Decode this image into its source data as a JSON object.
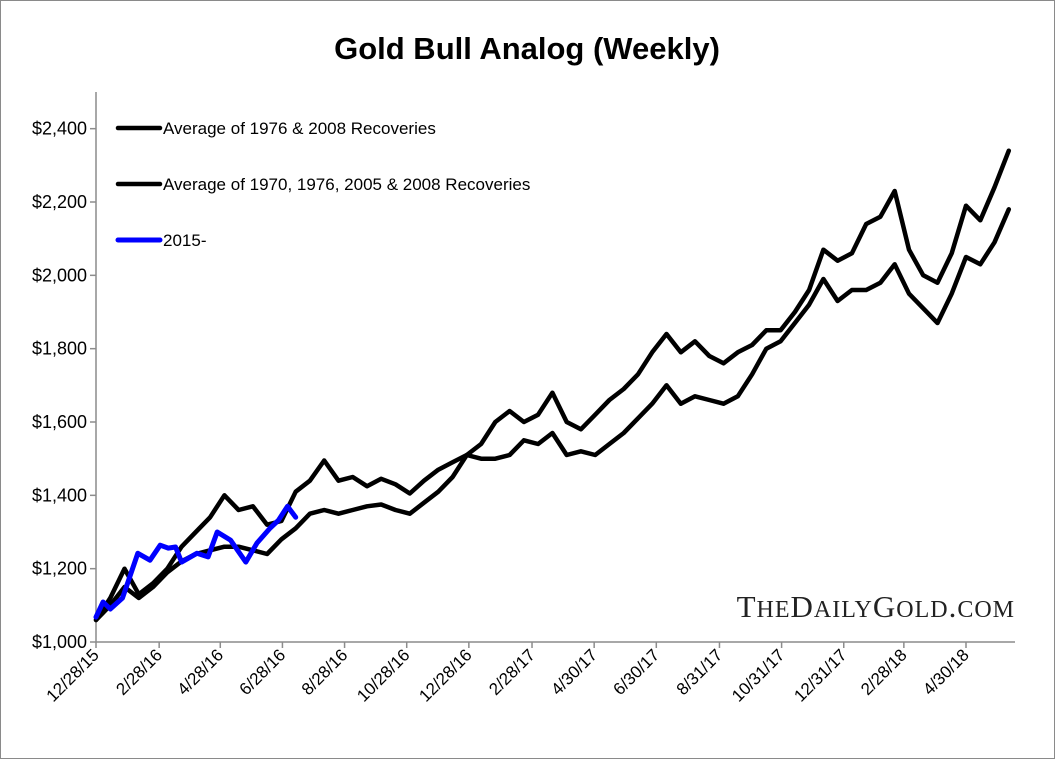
{
  "chart_data": {
    "type": "line",
    "title": "Gold Bull Analog (Weekly)",
    "xlabel": "",
    "ylabel": "",
    "ylim": [
      1000,
      2500
    ],
    "yticks": [
      1000,
      1200,
      1400,
      1600,
      1800,
      2000,
      2200,
      2400
    ],
    "ytick_labels": [
      "$1,000",
      "$1,200",
      "$1,400",
      "$1,600",
      "$1,800",
      "$2,000",
      "$2,200",
      "$2,400"
    ],
    "xtick_labels": [
      "12/28/15",
      "2/28/16",
      "4/28/16",
      "6/28/16",
      "8/28/16",
      "10/28/16",
      "12/28/16",
      "2/28/17",
      "4/30/17",
      "6/30/17",
      "8/31/17",
      "10/31/17",
      "12/31/17",
      "2/28/18",
      "4/30/18"
    ],
    "grid": false,
    "legend_placement": "top-left",
    "watermark": "TheDailyGold.com",
    "series": [
      {
        "name": "Average of 1976 & 2008 Recoveries",
        "color": "#000000",
        "x": [
          "2015-12-28",
          "2016-01-11",
          "2016-01-25",
          "2016-02-08",
          "2016-02-22",
          "2016-03-07",
          "2016-03-21",
          "2016-04-04",
          "2016-04-18",
          "2016-05-02",
          "2016-05-16",
          "2016-05-30",
          "2016-06-13",
          "2016-06-27",
          "2016-07-11",
          "2016-07-25",
          "2016-08-08",
          "2016-08-22",
          "2016-09-05",
          "2016-09-19",
          "2016-10-03",
          "2016-10-17",
          "2016-10-31",
          "2016-11-14",
          "2016-11-28",
          "2016-12-12",
          "2016-12-26",
          "2017-01-09",
          "2017-01-23",
          "2017-02-06",
          "2017-02-20",
          "2017-03-06",
          "2017-03-20",
          "2017-04-03",
          "2017-04-17",
          "2017-05-01",
          "2017-05-15",
          "2017-05-29",
          "2017-06-12",
          "2017-06-26",
          "2017-07-10",
          "2017-07-24",
          "2017-08-07",
          "2017-08-21",
          "2017-09-04",
          "2017-09-18",
          "2017-10-02",
          "2017-10-16",
          "2017-10-30",
          "2017-11-13",
          "2017-11-27",
          "2017-12-11",
          "2017-12-25",
          "2018-01-08",
          "2018-01-22",
          "2018-02-05",
          "2018-02-19",
          "2018-03-05",
          "2018-03-19",
          "2018-04-02",
          "2018-04-16",
          "2018-04-30",
          "2018-05-14",
          "2018-05-28",
          "2018-06-11"
        ],
        "values": [
          1060,
          1120,
          1200,
          1130,
          1160,
          1200,
          1260,
          1300,
          1340,
          1400,
          1360,
          1370,
          1320,
          1330,
          1410,
          1440,
          1495,
          1440,
          1450,
          1425,
          1445,
          1430,
          1405,
          1440,
          1470,
          1490,
          1510,
          1540,
          1600,
          1630,
          1600,
          1620,
          1680,
          1600,
          1580,
          1620,
          1660,
          1690,
          1730,
          1790,
          1840,
          1790,
          1820,
          1780,
          1760,
          1790,
          1810,
          1850,
          1850,
          1900,
          1960,
          2070,
          2040,
          2060,
          2140,
          2160,
          2230,
          2070,
          2000,
          1980,
          2060,
          2190,
          2150,
          2240,
          2340
        ]
      },
      {
        "name": "Average of 1970, 1976, 2005 & 2008 Recoveries",
        "color": "#000000",
        "x": [
          "2015-12-28",
          "2016-01-11",
          "2016-01-25",
          "2016-02-08",
          "2016-02-22",
          "2016-03-07",
          "2016-03-21",
          "2016-04-04",
          "2016-04-18",
          "2016-05-02",
          "2016-05-16",
          "2016-05-30",
          "2016-06-13",
          "2016-06-27",
          "2016-07-11",
          "2016-07-25",
          "2016-08-08",
          "2016-08-22",
          "2016-09-05",
          "2016-09-19",
          "2016-10-03",
          "2016-10-17",
          "2016-10-31",
          "2016-11-14",
          "2016-11-28",
          "2016-12-12",
          "2016-12-26",
          "2017-01-09",
          "2017-01-23",
          "2017-02-06",
          "2017-02-20",
          "2017-03-06",
          "2017-03-20",
          "2017-04-03",
          "2017-04-17",
          "2017-05-01",
          "2017-05-15",
          "2017-05-29",
          "2017-06-12",
          "2017-06-26",
          "2017-07-10",
          "2017-07-24",
          "2017-08-07",
          "2017-08-21",
          "2017-09-04",
          "2017-09-18",
          "2017-10-02",
          "2017-10-16",
          "2017-10-30",
          "2017-11-13",
          "2017-11-27",
          "2017-12-11",
          "2017-12-25",
          "2018-01-08",
          "2018-01-22",
          "2018-02-05",
          "2018-02-19",
          "2018-03-05",
          "2018-03-19",
          "2018-04-02",
          "2018-04-16",
          "2018-04-30",
          "2018-05-14",
          "2018-05-28",
          "2018-06-11"
        ],
        "values": [
          1060,
          1100,
          1150,
          1120,
          1150,
          1190,
          1220,
          1240,
          1250,
          1260,
          1260,
          1250,
          1240,
          1280,
          1310,
          1350,
          1360,
          1350,
          1360,
          1370,
          1375,
          1360,
          1350,
          1380,
          1410,
          1450,
          1510,
          1500,
          1500,
          1510,
          1550,
          1540,
          1570,
          1510,
          1520,
          1510,
          1540,
          1570,
          1610,
          1650,
          1700,
          1650,
          1670,
          1660,
          1650,
          1670,
          1730,
          1800,
          1820,
          1870,
          1920,
          1990,
          1930,
          1960,
          1960,
          1980,
          2030,
          1950,
          1910,
          1870,
          1950,
          2050,
          2030,
          2090,
          2180
        ]
      },
      {
        "name": "2015-",
        "color": "#0000ff",
        "x": [
          "2015-12-28",
          "2016-01-04",
          "2016-01-11",
          "2016-01-23",
          "2016-02-07",
          "2016-02-19",
          "2016-02-29",
          "2016-03-08",
          "2016-03-15",
          "2016-03-21",
          "2016-04-05",
          "2016-04-16",
          "2016-04-25",
          "2016-05-08",
          "2016-05-15",
          "2016-05-23",
          "2016-06-03",
          "2016-06-16",
          "2016-06-24",
          "2016-07-03",
          "2016-07-11"
        ],
        "values": [
          1068,
          1109,
          1090,
          1120,
          1242,
          1223,
          1264,
          1256,
          1259,
          1218,
          1242,
          1232,
          1300,
          1278,
          1250,
          1218,
          1270,
          1311,
          1332,
          1370,
          1340
        ]
      }
    ]
  }
}
